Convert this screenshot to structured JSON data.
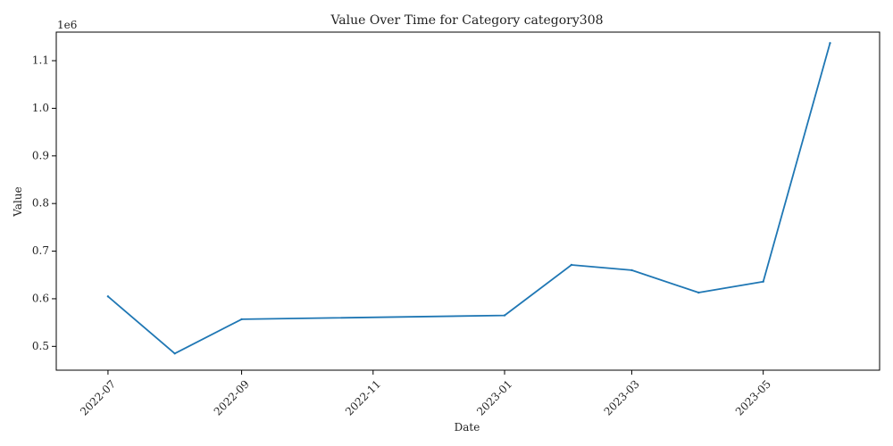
{
  "chart_data": {
    "type": "line",
    "title": "Value Over Time for Category category308",
    "xlabel": "Date",
    "ylabel": "Value",
    "y_offset_label": "1e6",
    "x_ticks": [
      "2022-07",
      "2022-09",
      "2022-11",
      "2023-01",
      "2023-03",
      "2023-05"
    ],
    "y_ticks": [
      0.5,
      0.6,
      0.7,
      0.8,
      0.9,
      1.0,
      1.1
    ],
    "y_tick_labels": [
      "0.5",
      "0.6",
      "0.7",
      "0.8",
      "0.9",
      "1.0",
      "1.1"
    ],
    "xlim": [
      "2022-06-07",
      "2023-06-24"
    ],
    "ylim": [
      450000,
      1160000
    ],
    "grid": false,
    "series": [
      {
        "color": "#1f77b4",
        "x": [
          "2022-07-01",
          "2022-08-01",
          "2022-09-01",
          "2023-01-01",
          "2023-02-01",
          "2023-03-01",
          "2023-04-01",
          "2023-05-01",
          "2023-06-01"
        ],
        "y": [
          605000,
          485000,
          557000,
          565000,
          671000,
          660000,
          613000,
          636000,
          1137000
        ]
      }
    ]
  }
}
